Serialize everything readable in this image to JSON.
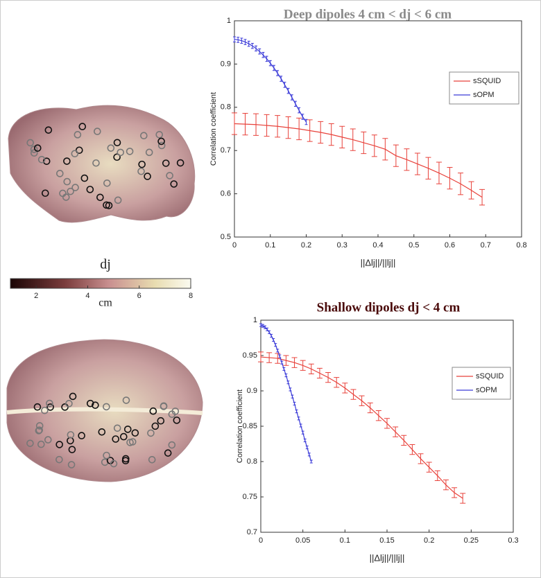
{
  "chart_data": [
    {
      "type": "line",
      "title": "Deep dipoles 4 cm < dj < 6 cm",
      "x_label": "||Δlj||/||lj||",
      "y_label": "Correlation coefficient",
      "xlim": [
        0,
        0.8
      ],
      "xticks": [
        0,
        0.1,
        0.2,
        0.3,
        0.4,
        0.5,
        0.6,
        0.7,
        0.8
      ],
      "ylim": [
        0.5,
        1
      ],
      "yticks": [
        0.5,
        0.6,
        0.7,
        0.8,
        0.9,
        1
      ],
      "legend": "upper right",
      "series": [
        {
          "name": "sSQUID",
          "color": "#e8413a",
          "x": [
            0,
            0.03,
            0.06,
            0.09,
            0.12,
            0.15,
            0.18,
            0.21,
            0.24,
            0.27,
            0.3,
            0.33,
            0.36,
            0.39,
            0.42,
            0.45,
            0.48,
            0.51,
            0.54,
            0.57,
            0.6,
            0.63,
            0.66,
            0.69
          ],
          "values": [
            0.762,
            0.761,
            0.76,
            0.758,
            0.756,
            0.753,
            0.75,
            0.746,
            0.742,
            0.737,
            0.731,
            0.725,
            0.718,
            0.711,
            0.703,
            0.688,
            0.679,
            0.669,
            0.659,
            0.648,
            0.636,
            0.623,
            0.608,
            0.592
          ],
          "errors": [
            0.025,
            0.025,
            0.025,
            0.025,
            0.025,
            0.025,
            0.025,
            0.025,
            0.025,
            0.025,
            0.025,
            0.025,
            0.025,
            0.025,
            0.025,
            0.025,
            0.025,
            0.025,
            0.025,
            0.025,
            0.025,
            0.025,
            0.02,
            0.018
          ]
        },
        {
          "name": "sOPM",
          "color": "#3a3ad8",
          "x": [
            0,
            0.01,
            0.02,
            0.03,
            0.04,
            0.05,
            0.06,
            0.07,
            0.08,
            0.09,
            0.1,
            0.11,
            0.12,
            0.13,
            0.14,
            0.15,
            0.16,
            0.17,
            0.18,
            0.19,
            0.2
          ],
          "values": [
            0.957,
            0.956,
            0.954,
            0.951,
            0.947,
            0.942,
            0.936,
            0.929,
            0.921,
            0.912,
            0.902,
            0.891,
            0.879,
            0.866,
            0.852,
            0.838,
            0.823,
            0.808,
            0.793,
            0.778,
            0.766
          ],
          "errors": [
            0.006,
            0.006,
            0.006,
            0.006,
            0.006,
            0.006,
            0.006,
            0.006,
            0.006,
            0.006,
            0.006,
            0.006,
            0.006,
            0.006,
            0.006,
            0.006,
            0.006,
            0.006,
            0.006,
            0.006,
            0.006
          ]
        }
      ]
    },
    {
      "type": "line",
      "title": "Shallow dipoles dj < 4 cm",
      "x_label": "||Δlj||/||lj||",
      "y_label": "Correlation coefficient",
      "xlim": [
        0,
        0.3
      ],
      "xticks": [
        0,
        0.05,
        0.1,
        0.15,
        0.2,
        0.25,
        0.3
      ],
      "ylim": [
        0.7,
        1
      ],
      "yticks": [
        0.7,
        0.75,
        0.8,
        0.85,
        0.9,
        0.95,
        1
      ],
      "legend": "upper right",
      "series": [
        {
          "name": "sSQUID",
          "color": "#e8413a",
          "x": [
            0,
            0.01,
            0.02,
            0.03,
            0.04,
            0.05,
            0.06,
            0.07,
            0.08,
            0.09,
            0.1,
            0.11,
            0.12,
            0.13,
            0.14,
            0.15,
            0.16,
            0.17,
            0.18,
            0.19,
            0.2,
            0.21,
            0.22,
            0.23,
            0.24
          ],
          "values": [
            0.948,
            0.947,
            0.946,
            0.943,
            0.94,
            0.936,
            0.931,
            0.925,
            0.919,
            0.912,
            0.904,
            0.895,
            0.886,
            0.876,
            0.865,
            0.854,
            0.842,
            0.83,
            0.817,
            0.804,
            0.792,
            0.78,
            0.767,
            0.756,
            0.748
          ],
          "errors": [
            0.007,
            0.007,
            0.007,
            0.007,
            0.007,
            0.007,
            0.007,
            0.007,
            0.007,
            0.007,
            0.007,
            0.007,
            0.007,
            0.007,
            0.007,
            0.007,
            0.007,
            0.007,
            0.007,
            0.007,
            0.007,
            0.007,
            0.007,
            0.007,
            0.007
          ]
        },
        {
          "name": "sOPM",
          "color": "#3a3ad8",
          "x": [
            0,
            0.0025,
            0.005,
            0.0075,
            0.01,
            0.0125,
            0.015,
            0.0175,
            0.02,
            0.0225,
            0.025,
            0.0275,
            0.03,
            0.0325,
            0.035,
            0.0375,
            0.04,
            0.0425,
            0.045,
            0.0475,
            0.05,
            0.0525,
            0.055,
            0.0575,
            0.06
          ],
          "values": [
            0.993,
            0.992,
            0.99,
            0.987,
            0.983,
            0.978,
            0.972,
            0.965,
            0.957,
            0.949,
            0.94,
            0.931,
            0.922,
            0.912,
            0.902,
            0.892,
            0.882,
            0.871,
            0.861,
            0.851,
            0.841,
            0.83,
            0.82,
            0.81,
            0.8
          ],
          "errors": [
            0.002,
            0.002,
            0.002,
            0.002,
            0.002,
            0.002,
            0.002,
            0.002,
            0.002,
            0.002,
            0.002,
            0.002,
            0.002,
            0.002,
            0.002,
            0.002,
            0.002,
            0.002,
            0.002,
            0.002,
            0.002,
            0.002,
            0.002,
            0.002,
            0.002
          ]
        }
      ]
    }
  ],
  "colorbar": {
    "label": "dj",
    "unit": "cm",
    "lim": [
      1,
      8
    ],
    "ticks": [
      2,
      4,
      6,
      8
    ]
  }
}
